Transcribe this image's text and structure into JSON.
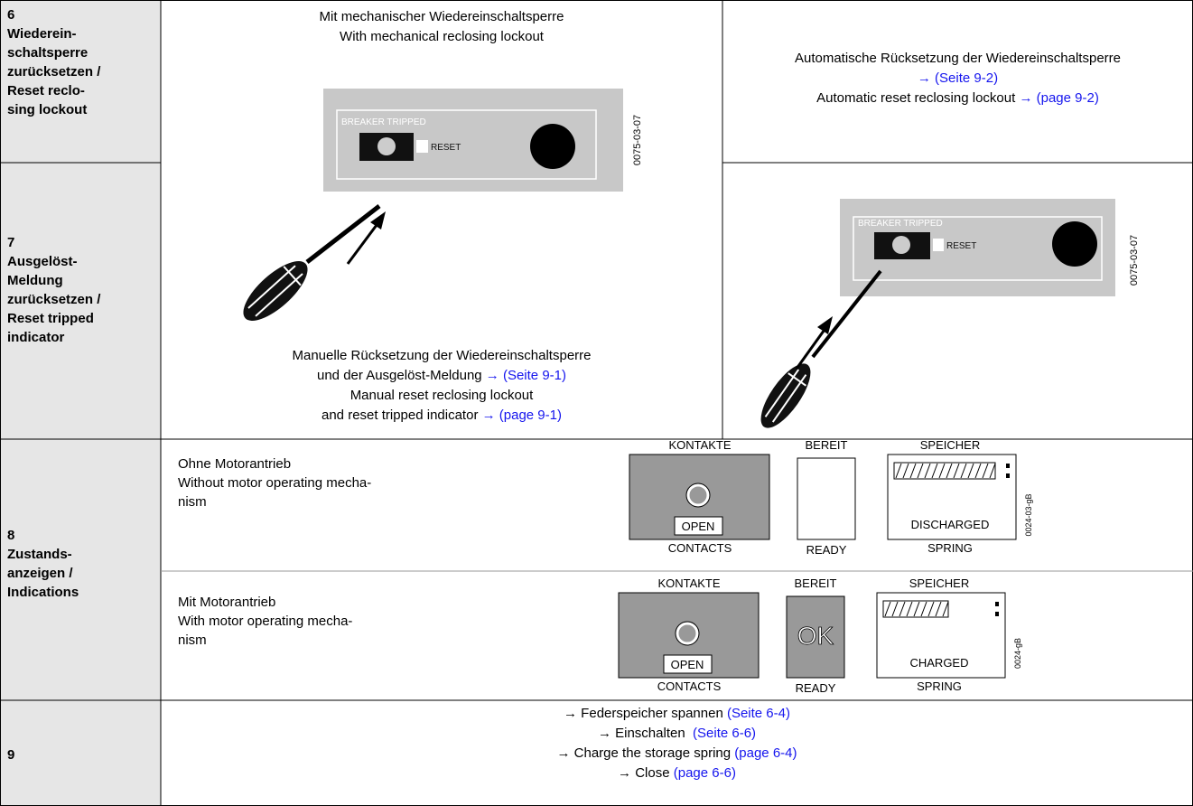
{
  "rows": {
    "r6": {
      "number": "6",
      "label": "Wiederein-\nschaltsperre\nzurücksetzen /\nReset reclo-\nsing lockout"
    },
    "r7": {
      "number": "7",
      "label": "Ausgelöst-\nMeldung\nzurücksetzen /\nReset tripped\nindicator"
    },
    "r8": {
      "number": "8",
      "label": "Zustands-\nanzeigen /\nIndications"
    },
    "r9": {
      "number": "9"
    }
  },
  "manual": {
    "heading": [
      "Mit mechanischer Wiedereinschaltsperre",
      "With mechanical reclosing lockout"
    ],
    "caption": [
      {
        "text": "Manuelle Rücksetzung der Wiedereinschaltsperre"
      },
      {
        "text": "und der Ausgelöst-Meldung ",
        "link": "→ (Seite 9-1)"
      },
      {
        "text": "Manual reset reclosing lockout"
      },
      {
        "text": "and reset tripped indicator ",
        "link": "→ (page 9-1)"
      }
    ],
    "panel": {
      "label": "BREAKER TRIPPED",
      "button": "RESET",
      "code": "0075-03-07"
    }
  },
  "automatic": {
    "caption": [
      {
        "text": "Automatische Rücksetzung der Wiedereinschaltsperre"
      },
      {
        "link": "→ (Seite 9-2)"
      },
      {
        "text": "Automatic reset reclosing lockout ",
        "link": "→ (page 9-2)"
      }
    ],
    "panel": {
      "label": "BREAKER TRIPPED",
      "button": "RESET",
      "code": "0075-03-07"
    }
  },
  "indications": [
    {
      "text": "Ohne Motorantrieb\nWithout motor operating mecha-\nnism",
      "contacts_top": "KONTAKTE",
      "contacts_state": "OPEN",
      "contacts_bottom": "CONTACTS",
      "ready_top": "BEREIT",
      "ready_bottom": "READY",
      "spring_top": "SPEICHER",
      "spring_state": "DISCHARGED",
      "spring_bottom": "SPRING",
      "code": "0024-03-gB"
    },
    {
      "text": "Mit Motorantrieb\nWith motor operating mecha-\nnism",
      "contacts_top": "KONTAKTE",
      "contacts_state": "OPEN",
      "contacts_bottom": "CONTACTS",
      "ready_top": "BEREIT",
      "ready_state": "OK",
      "ready_bottom": "READY",
      "spring_top": "SPEICHER",
      "spring_state": "CHARGED",
      "spring_bottom": "SPRING",
      "code": "0024-gB"
    }
  ],
  "row9": [
    {
      "text": "→ Federspeicher spannen ",
      "link": "(Seite 6-4)"
    },
    {
      "text": "→ Einschalten  ",
      "link": "(Seite 6-6)"
    },
    {
      "text": "→ Charge the storage spring ",
      "link": "(page 6-4)"
    },
    {
      "text": "→ Close ",
      "link": "(page 6-6)"
    }
  ]
}
